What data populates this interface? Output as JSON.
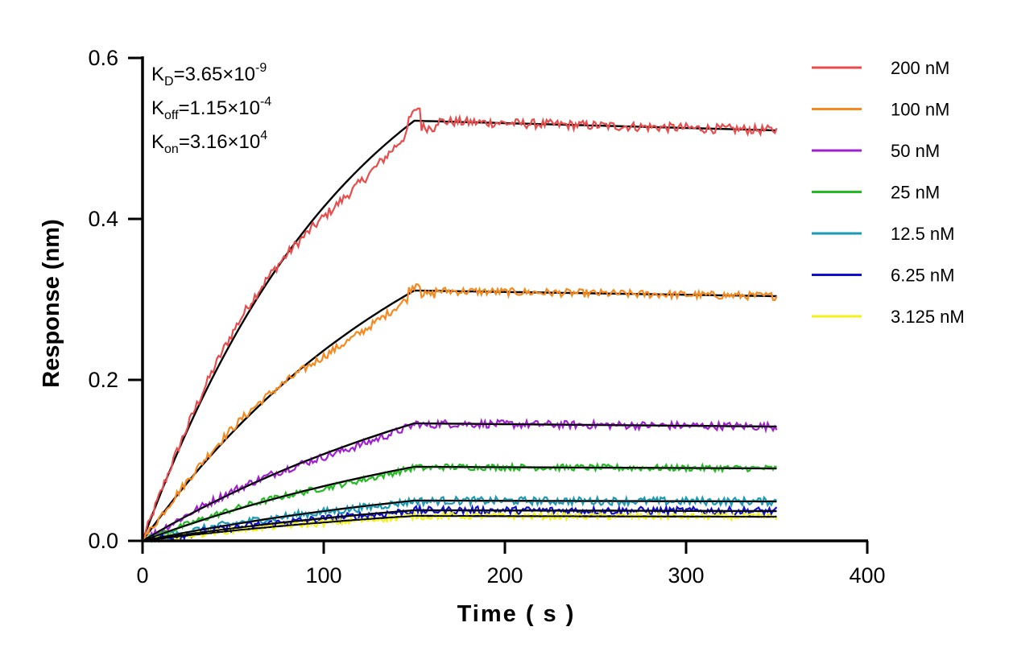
{
  "chart_data": {
    "type": "line",
    "title": "",
    "xlabel": "Time ( s )",
    "ylabel": "Response (nm)",
    "xlim": [
      0,
      400
    ],
    "ylim": [
      0,
      0.6
    ],
    "x_ticks": [
      "0",
      "100",
      "200",
      "300",
      "400"
    ],
    "y_ticks": [
      "0.0",
      "0.2",
      "0.4",
      "0.6"
    ],
    "grid": false,
    "legend_position": "right",
    "association_end": 150,
    "x_end": 350,
    "fit_color": "#000000",
    "kinetics": [
      {
        "symbol": "K",
        "sub": "D",
        "text": "=3.65×10",
        "sup": "-9"
      },
      {
        "symbol": "K",
        "sub": "off",
        "text": "=1.15×10",
        "sup": "-4"
      },
      {
        "symbol": "K",
        "sub": "on",
        "text": "=3.16×10",
        "sup": "4"
      }
    ],
    "series": [
      {
        "name": "200 nM",
        "color": "#e84c4c",
        "plateau": 0.522,
        "end": 0.51,
        "noise": 0.006
      },
      {
        "name": "100 nM",
        "color": "#f5891e",
        "plateau": 0.311,
        "end": 0.304,
        "noise": 0.005
      },
      {
        "name": "50 nM",
        "color": "#a020d0",
        "plateau": 0.146,
        "end": 0.142,
        "noise": 0.005
      },
      {
        "name": "25 nM",
        "color": "#22bb22",
        "plateau": 0.092,
        "end": 0.09,
        "noise": 0.004
      },
      {
        "name": "12.5 nM",
        "color": "#1a9ab5",
        "plateau": 0.05,
        "end": 0.049,
        "noise": 0.005
      },
      {
        "name": "6.25 nM",
        "color": "#1010cc",
        "plateau": 0.038,
        "end": 0.037,
        "noise": 0.005
      },
      {
        "name": "3.125 nM",
        "color": "#f2f21a",
        "plateau": 0.031,
        "end": 0.03,
        "noise": 0.004
      }
    ]
  }
}
